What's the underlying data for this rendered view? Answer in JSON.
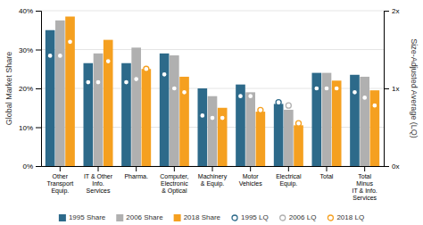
{
  "chart_data": {
    "type": "bar",
    "categories": [
      "Other\nTransport\nEquip.",
      "IT & Other\nInfo.\nServices",
      "Pharma.",
      "Computer,\nElectronic\n& Optical",
      "Machinery\n& Equip.",
      "Motor\nVehicles",
      "Electrical\nEquip.",
      "Total",
      "Total\nMinus\nIT & Info.\nServices"
    ],
    "series": [
      {
        "name": "1995 Share",
        "color": "#2d6a8a",
        "values": [
          35,
          26.5,
          26.5,
          29,
          20,
          21,
          16,
          24,
          23.5
        ]
      },
      {
        "name": "2006 Share",
        "color": "#b0b0b0",
        "values": [
          37.5,
          29,
          30.5,
          28.5,
          18,
          19,
          14.5,
          24,
          23
        ]
      },
      {
        "name": "2018 Share",
        "color": "#f5a020",
        "values": [
          38.5,
          32.5,
          25,
          23,
          15,
          14,
          10.5,
          22,
          19.5
        ]
      },
      {
        "name": "1995 LQ",
        "color": "#2d6a8a",
        "type": "scatter",
        "marker": "circle",
        "axis": "y2",
        "values": [
          1.42,
          1.08,
          1.08,
          1.18,
          0.65,
          0.9,
          0.82,
          1.0,
          0.95
        ]
      },
      {
        "name": "2006 LQ",
        "color": "#b0b0b0",
        "type": "scatter",
        "marker": "circle",
        "axis": "y2",
        "values": [
          1.42,
          1.08,
          1.12,
          1.0,
          0.62,
          0.9,
          0.78,
          1.0,
          0.88
        ]
      },
      {
        "name": "2018 LQ",
        "color": "#f5a020",
        "type": "scatter",
        "marker": "circle",
        "axis": "y2",
        "values": [
          1.6,
          1.35,
          1.25,
          0.95,
          0.62,
          0.72,
          0.55,
          1.0,
          0.78
        ]
      }
    ],
    "ylabel": "Global Market Share",
    "y2label": "Size-Adjusted Average (LQ)",
    "ylim": [
      0,
      40
    ],
    "yticks": [
      {
        "value": 0,
        "label": "0%"
      },
      {
        "value": 10,
        "label": "10%"
      },
      {
        "value": 20,
        "label": "20%"
      },
      {
        "value": 30,
        "label": "30%"
      },
      {
        "value": 40,
        "label": "40%"
      }
    ],
    "y2lim": [
      0,
      2
    ],
    "y2ticks": [
      {
        "value": 0,
        "label": "0x"
      },
      {
        "value": 1,
        "label": "1x"
      },
      {
        "value": 2,
        "label": "2x"
      }
    ],
    "grid": true,
    "legend": "bottom"
  }
}
